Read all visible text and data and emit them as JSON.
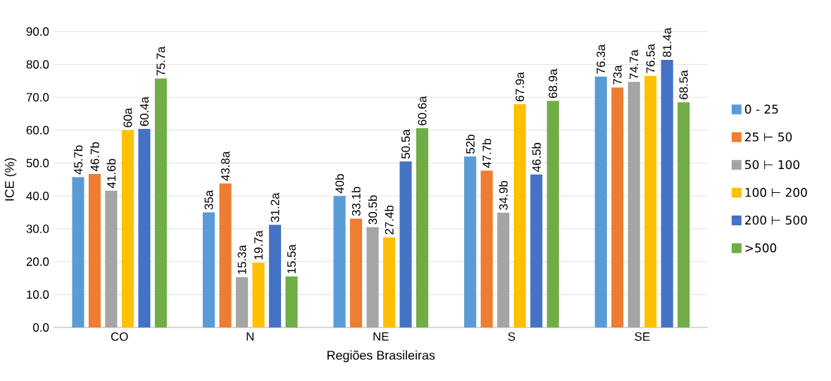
{
  "chart_data": {
    "type": "bar",
    "xlabel": "Regiões Brasileiras",
    "ylabel": "ICE (%)",
    "categories": [
      "CO",
      "N",
      "NE",
      "S",
      "SE"
    ],
    "series": [
      {
        "name": "0 - 25",
        "color": "#5b9bd5",
        "values": [
          45.7,
          35,
          40,
          52,
          76.3
        ],
        "value_labels": [
          "45.7b",
          "35a",
          "40b",
          "52b",
          "76.3a"
        ]
      },
      {
        "name": "25 ⊢ 50",
        "color": "#ed7d31",
        "values": [
          46.7,
          43.8,
          33.1,
          47.7,
          73
        ],
        "value_labels": [
          "46.7b",
          "43.8a",
          "33.1b",
          "47.7b",
          "73a"
        ]
      },
      {
        "name": "50 ⊢ 100",
        "color": "#a5a5a5",
        "values": [
          41.6,
          15.3,
          30.5,
          34.9,
          74.7
        ],
        "value_labels": [
          "41.6b",
          "15.3a",
          "30.5b",
          "34.9b",
          "74.7a"
        ]
      },
      {
        "name": "100 ⊢ 200",
        "color": "#ffc000",
        "values": [
          60,
          19.7,
          27.4,
          67.9,
          76.5
        ],
        "value_labels": [
          "60a",
          "19.7a",
          "27.4b",
          "67.9a",
          "76.5a"
        ]
      },
      {
        "name": "200 ⊢ 500",
        "color": "#4472c4",
        "values": [
          60.4,
          31.2,
          50.5,
          46.5,
          81.4
        ],
        "value_labels": [
          "60.4a",
          "31.2a",
          "50.5a",
          "46.5b",
          "81.4a"
        ]
      },
      {
        "name": ">500",
        "color": "#70ad47",
        "values": [
          75.7,
          15.5,
          60.6,
          68.9,
          68.5
        ],
        "value_labels": [
          "75.7a",
          "15.5a",
          "60.6a",
          "68.9a",
          "68.5a"
        ]
      }
    ],
    "ylim": [
      0,
      90
    ],
    "yticks": [
      {
        "value": 0,
        "label": "0.0"
      },
      {
        "value": 10,
        "label": "10.0"
      },
      {
        "value": 20,
        "label": "20.0"
      },
      {
        "value": 30,
        "label": "30.0"
      },
      {
        "value": 40,
        "label": "40.0"
      },
      {
        "value": 50,
        "label": "50.0"
      },
      {
        "value": 60,
        "label": "60.0"
      },
      {
        "value": 70,
        "label": "70.0"
      },
      {
        "value": 80,
        "label": "80.0"
      },
      {
        "value": 90,
        "label": "90.0"
      }
    ],
    "grid": "y",
    "legend": "right"
  }
}
